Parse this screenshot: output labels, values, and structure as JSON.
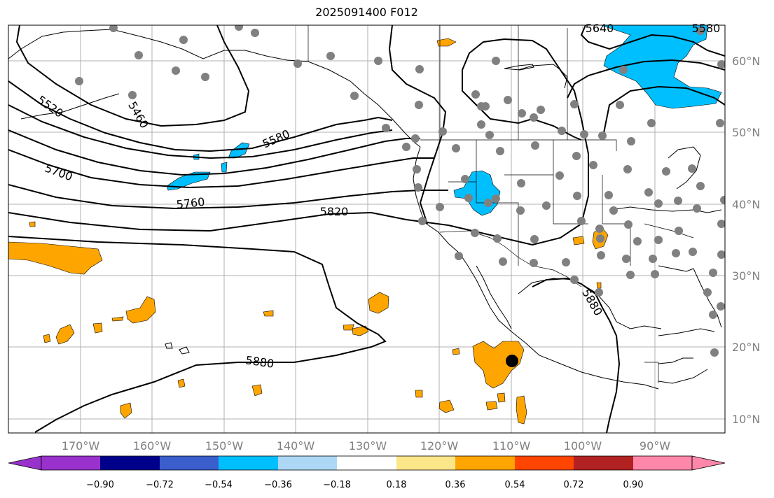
{
  "title": "2025091400 F012",
  "lat_ticks": [
    "60°N",
    "50°N",
    "40°N",
    "30°N",
    "20°N",
    "10°N"
  ],
  "lon_ticks": [
    "170°W",
    "160°W",
    "150°W",
    "140°W",
    "130°W",
    "120°W",
    "110°W",
    "100°W",
    "90°W"
  ],
  "contour_labels": [
    "5520",
    "5460",
    "5580",
    "5700",
    "5760",
    "5820",
    "5880",
    "5880",
    "5640",
    "5580"
  ],
  "colorbar": {
    "ticks": [
      "−0.90",
      "−0.72",
      "−0.54",
      "−0.36",
      "−0.18",
      "0.18",
      "0.36",
      "0.54",
      "0.72",
      "0.90"
    ],
    "colors": [
      "#9932cc",
      "#00008b",
      "#3a5fcd",
      "#00bfff",
      "#add8f5",
      "#ffffff",
      "#fce68a",
      "#ffa500",
      "#ff4500",
      "#b22222",
      "#ff88aa"
    ]
  }
}
